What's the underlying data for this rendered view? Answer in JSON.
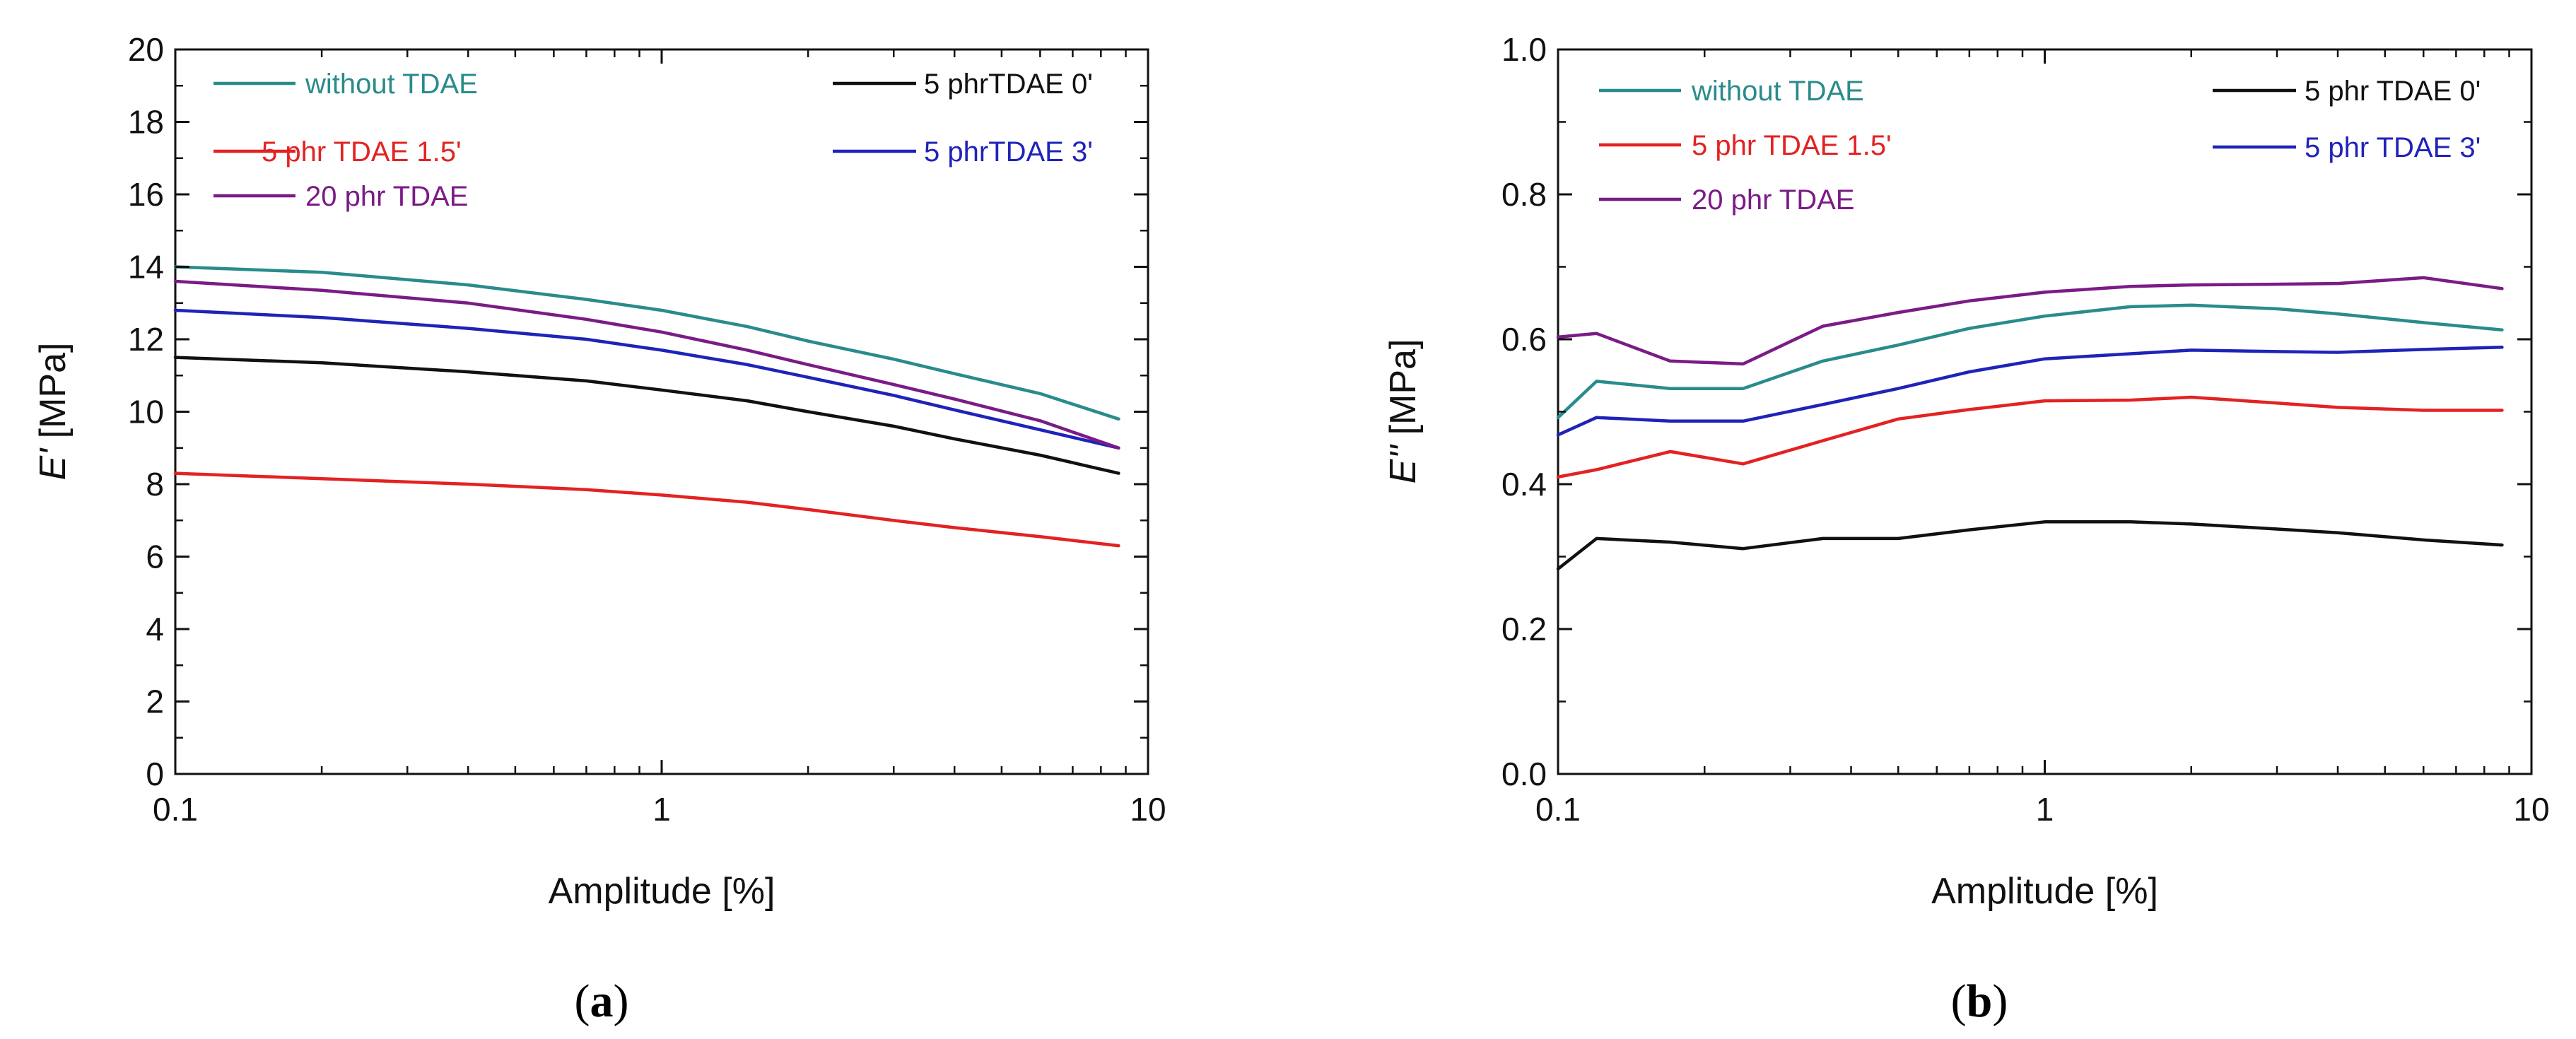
{
  "colors": {
    "without_tdae": "#2a8b8b",
    "tdae_0": "#111111",
    "tdae_1_5": "#e32222",
    "tdae_3": "#1f23b8",
    "tdae_20": "#7b1b86",
    "axis": "#111111"
  },
  "chart_data": [
    {
      "panel": "a",
      "type": "line",
      "title": "",
      "xlabel": "Amplitude [%]",
      "ylabel": "E' [MPa]",
      "ylabel_main": "E'",
      "ylabel_unit": " [MPa]",
      "xscale": "log",
      "xlim": [
        0.1,
        10
      ],
      "ylim": [
        0,
        20
      ],
      "x_ticks": [
        0.1,
        1,
        10
      ],
      "x_tick_labels": [
        "0.1",
        "1",
        "10"
      ],
      "y_ticks": [
        0,
        2,
        4,
        6,
        8,
        10,
        12,
        14,
        16,
        18,
        20
      ],
      "y_tick_labels": [
        "0",
        "2",
        "4",
        "6",
        "8",
        "10",
        "12",
        "14",
        "16",
        "18",
        "20"
      ],
      "grid": false,
      "legend_position": "top",
      "legend_order": [
        0,
        1,
        2,
        3,
        4
      ],
      "series": [
        {
          "name": "without TDAE",
          "color": "#2a8b8b",
          "x": [
            0.1,
            0.2,
            0.4,
            0.7,
            1,
            1.5,
            2,
            3,
            4,
            6,
            8.7
          ],
          "y": [
            14.0,
            13.85,
            13.5,
            13.1,
            12.8,
            12.35,
            11.95,
            11.45,
            11.05,
            10.5,
            9.8
          ]
        },
        {
          "name": "5 phrTDAE 0'",
          "color": "#111111",
          "x": [
            0.1,
            0.2,
            0.4,
            0.7,
            1,
            1.5,
            2,
            3,
            4,
            6,
            8.7
          ],
          "y": [
            11.5,
            11.35,
            11.1,
            10.85,
            10.6,
            10.3,
            10.0,
            9.6,
            9.25,
            8.8,
            8.3
          ]
        },
        {
          "name": "5 phr TDAE 1.5'",
          "color": "#e32222",
          "x": [
            0.1,
            0.2,
            0.4,
            0.7,
            1,
            1.5,
            2,
            3,
            4,
            6,
            8.7
          ],
          "y": [
            8.3,
            8.15,
            8.0,
            7.85,
            7.7,
            7.5,
            7.3,
            7.0,
            6.8,
            6.55,
            6.3
          ]
        },
        {
          "name": "5 phrTDAE 3'",
          "color": "#1f23b8",
          "x": [
            0.1,
            0.2,
            0.4,
            0.7,
            1,
            1.5,
            2,
            3,
            4,
            6,
            8.7
          ],
          "y": [
            12.8,
            12.6,
            12.3,
            12.0,
            11.7,
            11.3,
            10.95,
            10.45,
            10.05,
            9.5,
            9.0
          ]
        },
        {
          "name": "20 phr TDAE",
          "color": "#7b1b86",
          "x": [
            0.1,
            0.2,
            0.4,
            0.7,
            1,
            1.5,
            2,
            3,
            4,
            6,
            8.7
          ],
          "y": [
            13.6,
            13.35,
            13.0,
            12.55,
            12.2,
            11.7,
            11.3,
            10.75,
            10.35,
            9.75,
            9.0
          ]
        }
      ]
    },
    {
      "panel": "b",
      "type": "line",
      "title": "",
      "xlabel": "Amplitude [%]",
      "ylabel": "E'' [MPa]",
      "ylabel_main": "E''",
      "ylabel_unit": " [MPa]",
      "xscale": "log",
      "xlim": [
        0.1,
        10
      ],
      "ylim": [
        0,
        1
      ],
      "x_ticks": [
        0.1,
        1,
        10
      ],
      "x_tick_labels": [
        "0.1",
        "1",
        "10"
      ],
      "y_ticks": [
        0,
        0.2,
        0.4,
        0.6,
        0.8,
        1.0
      ],
      "y_tick_labels": [
        "0.0",
        "0.2",
        "0.4",
        "0.6",
        "0.8",
        "1.0"
      ],
      "grid": false,
      "legend_position": "top",
      "legend_order": [
        0,
        1,
        2,
        3,
        4
      ],
      "series": [
        {
          "name": "without TDAE",
          "color": "#2a8b8b",
          "x": [
            0.1,
            0.12,
            0.17,
            0.24,
            0.35,
            0.5,
            0.7,
            1,
            1.5,
            2,
            3,
            4,
            6,
            8.7
          ],
          "y": [
            0.492,
            0.542,
            0.532,
            0.532,
            0.57,
            0.592,
            0.615,
            0.632,
            0.645,
            0.647,
            0.642,
            0.635,
            0.623,
            0.613
          ]
        },
        {
          "name": "5 phr TDAE 0'",
          "color": "#111111",
          "x": [
            0.1,
            0.12,
            0.17,
            0.24,
            0.35,
            0.5,
            0.7,
            1,
            1.5,
            2,
            3,
            4,
            6,
            8.7
          ],
          "y": [
            0.283,
            0.325,
            0.32,
            0.311,
            0.325,
            0.325,
            0.337,
            0.348,
            0.348,
            0.345,
            0.338,
            0.333,
            0.323,
            0.316
          ]
        },
        {
          "name": "5 phr TDAE 1.5'",
          "color": "#e32222",
          "x": [
            0.1,
            0.12,
            0.17,
            0.24,
            0.35,
            0.5,
            0.7,
            1,
            1.5,
            2,
            3,
            4,
            6,
            8.7
          ],
          "y": [
            0.41,
            0.42,
            0.445,
            0.428,
            0.46,
            0.49,
            0.503,
            0.515,
            0.516,
            0.52,
            0.512,
            0.506,
            0.502,
            0.502
          ]
        },
        {
          "name": "5 phr TDAE 3'",
          "color": "#1f23b8",
          "x": [
            0.1,
            0.12,
            0.17,
            0.24,
            0.35,
            0.5,
            0.7,
            1,
            1.5,
            2,
            3,
            4,
            6,
            8.7
          ],
          "y": [
            0.468,
            0.492,
            0.487,
            0.487,
            0.51,
            0.532,
            0.555,
            0.573,
            0.58,
            0.585,
            0.583,
            0.582,
            0.586,
            0.589
          ]
        },
        {
          "name": "20 phr TDAE",
          "color": "#7b1b86",
          "x": [
            0.1,
            0.12,
            0.17,
            0.24,
            0.35,
            0.5,
            0.7,
            1,
            1.5,
            2,
            3,
            4,
            6,
            8.7
          ],
          "y": [
            0.603,
            0.608,
            0.57,
            0.566,
            0.618,
            0.637,
            0.653,
            0.665,
            0.673,
            0.675,
            0.676,
            0.677,
            0.685,
            0.67
          ]
        }
      ]
    }
  ],
  "panel_labels": [
    {
      "open": "(",
      "letter": "a",
      "close": ")"
    },
    {
      "open": "(",
      "letter": "b",
      "close": ")"
    }
  ]
}
